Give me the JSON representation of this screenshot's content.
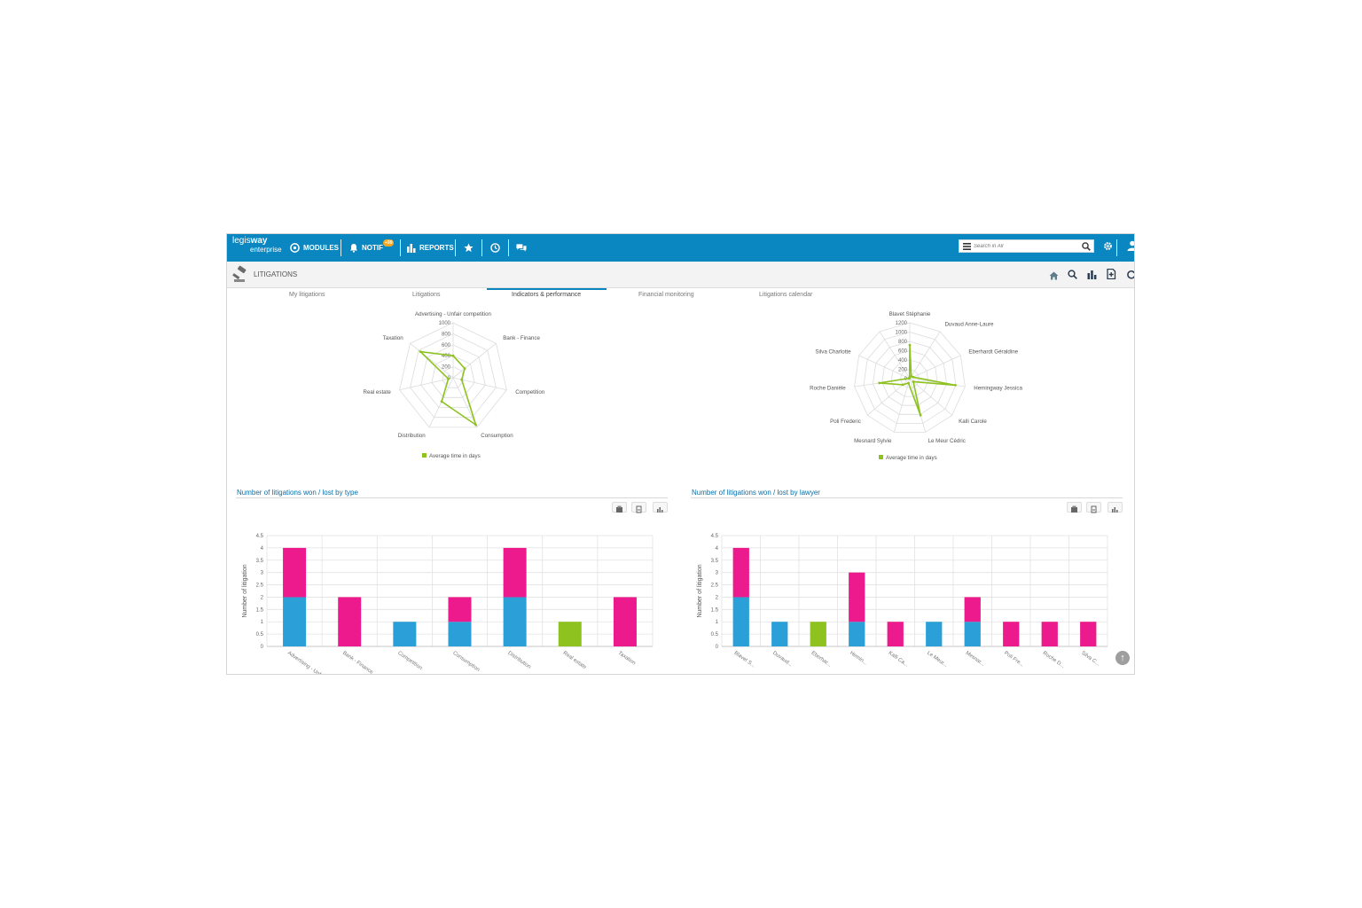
{
  "app": {
    "logo_line1_a": "legis",
    "logo_line1_b": "way",
    "logo_line2": "enterprise"
  },
  "topnav": {
    "modules_label": "MODULES",
    "notif_label": "NOTIF",
    "notif_count": "+99",
    "reports_label": "REPORTS",
    "search_placeholder": "Search in All"
  },
  "section": {
    "title": "LITIGATIONS"
  },
  "tabs": [
    {
      "label": "My litigations",
      "active": false
    },
    {
      "label": "Litigations",
      "active": false
    },
    {
      "label": "Indicators & performance",
      "active": true
    },
    {
      "label": "Financial monitoring",
      "active": false
    },
    {
      "label": "Litigations calendar",
      "active": false
    }
  ],
  "colors": {
    "brand": "#0a86c1",
    "won": "#2a9fd8",
    "lost": "#ec1a8c",
    "other": "#8dc21f",
    "radar": "#8dc21f"
  },
  "icons": [
    "modules-icon",
    "bell-icon",
    "bar-chart-icon",
    "star-icon",
    "clock-icon",
    "chat-icon",
    "menu-icon",
    "search-icon",
    "gear-icon",
    "user-icon",
    "gavel-icon",
    "home-icon",
    "add-document-icon",
    "refresh-icon",
    "print-icon",
    "export-icon",
    "chart-type-icon",
    "arrow-up-icon"
  ],
  "chart_data": [
    {
      "type": "radar",
      "series": [
        {
          "name": "Average time in days",
          "values": [
            400,
            270,
            160,
            950,
            480,
            90,
            760
          ]
        }
      ],
      "categories": [
        "Advertising - Unfair competition",
        "Bank - Finance",
        "Competition",
        "Consumption",
        "Distribution",
        "Real estate",
        "Taxation"
      ],
      "ticks": [
        "0",
        "200",
        "400",
        "600",
        "800",
        "1000"
      ],
      "ylim": [
        0,
        1000
      ]
    },
    {
      "type": "radar",
      "series": [
        {
          "name": "Average time in days",
          "values": [
            720,
            60,
            80,
            990,
            100,
            820,
            100,
            200,
            660,
            20,
            10
          ]
        }
      ],
      "categories": [
        "Blavet Stéphanie",
        "Duvaud Anne-Laure",
        "Eberhardt Géraldine",
        "Hemingway Jessica",
        "Kalli Carole",
        "Le Meur Cédric",
        "Mesnard Sylvie",
        "Poli Frederic",
        "Roche Danièle",
        "Silva Charlotte",
        ""
      ],
      "ticks": [
        "0",
        "200",
        "400",
        "600",
        "800",
        "1000",
        "1200"
      ],
      "ylim": [
        0,
        1200
      ]
    },
    {
      "type": "bar",
      "title": "Number of litigations won / lost by type",
      "ylabel": "Number of litigation",
      "categories": [
        "Advertising - Unfai...",
        "Bank - Finance",
        "Competition",
        "Consumption",
        "Distribution",
        "Real estate",
        "Taxation"
      ],
      "series": [
        {
          "values": [
            2,
            0,
            1,
            1,
            2,
            0,
            0
          ]
        },
        {
          "values": [
            0,
            0,
            0,
            0,
            0,
            1,
            0
          ]
        },
        {
          "values": [
            2,
            2,
            0,
            1,
            2,
            0,
            2
          ]
        }
      ],
      "ticks": [
        "0",
        "0.5",
        "1",
        "1.5",
        "2",
        "2.5",
        "3",
        "3.5",
        "4",
        "4.5"
      ],
      "ylim": [
        0,
        4.5
      ]
    },
    {
      "type": "bar",
      "title": "Number of litigations won / lost by lawyer",
      "ylabel": "Number of litigation",
      "categories": [
        "Blavet S...",
        "Duvaud...",
        "Eberhar...",
        "Hemin...",
        "Kalli Ca...",
        "Le Meur...",
        "Mesnar...",
        "Poli Fre...",
        "Roche D...",
        "Silva C..."
      ],
      "series": [
        {
          "values": [
            2,
            1,
            0,
            1,
            0,
            1,
            1,
            0,
            0,
            0
          ]
        },
        {
          "values": [
            0,
            0,
            1,
            0,
            0,
            0,
            0,
            0,
            0,
            0
          ]
        },
        {
          "values": [
            2,
            0,
            0,
            2,
            1,
            0,
            1,
            1,
            1,
            1
          ]
        }
      ],
      "ticks": [
        "0",
        "0.5",
        "1",
        "1.5",
        "2",
        "2.5",
        "3",
        "3.5",
        "4",
        "4.5"
      ],
      "ylim": [
        0,
        4.5
      ]
    }
  ]
}
